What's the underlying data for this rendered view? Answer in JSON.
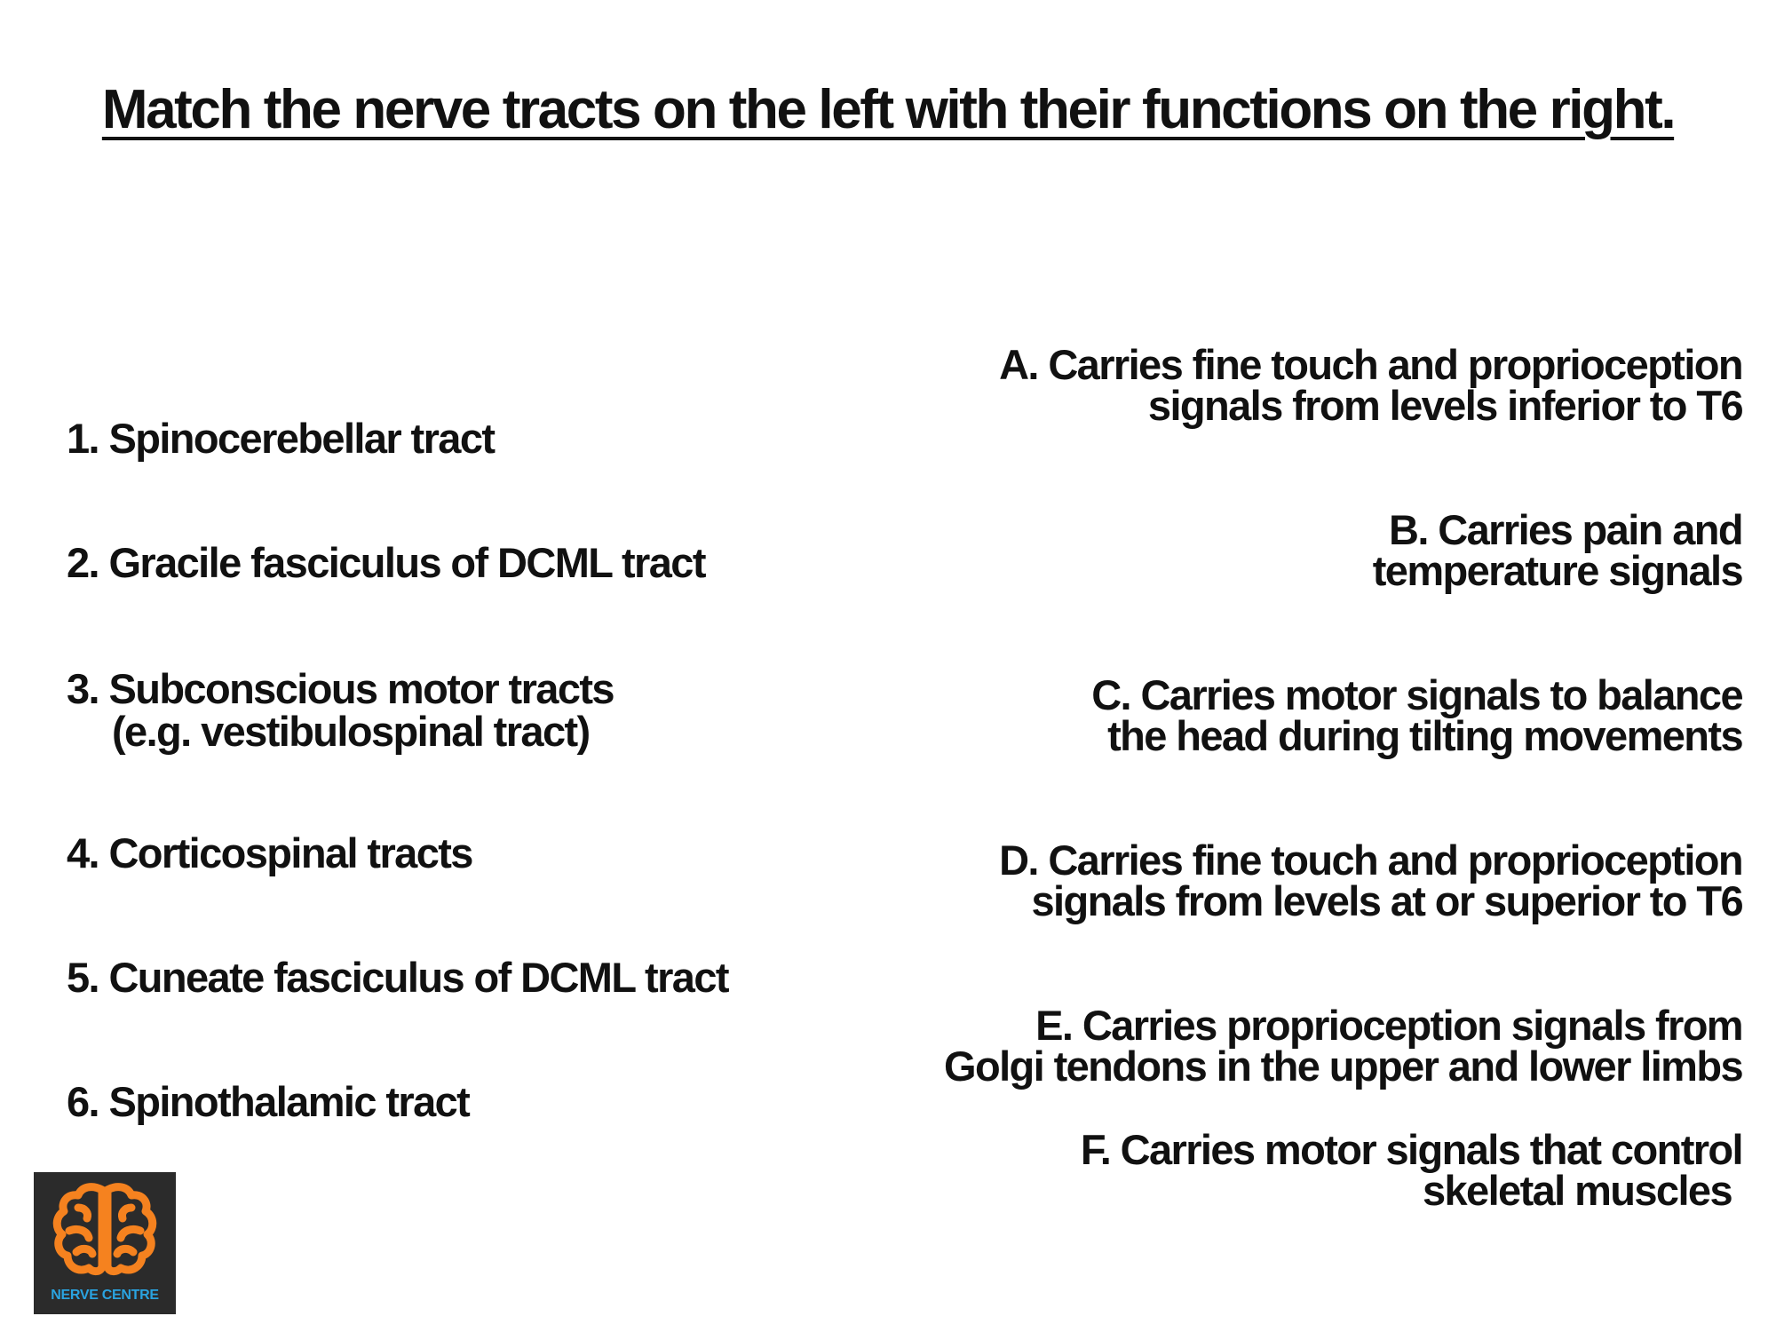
{
  "title": "Match the nerve tracts on the left with their functions on the right.",
  "tracts": [
    {
      "line1": "1. Spinocerebellar tract"
    },
    {
      "line1": "2. Gracile fasciculus of DCML tract"
    },
    {
      "line1": "3. Subconscious motor tracts",
      "line2": "(e.g. vestibulospinal tract)"
    },
    {
      "line1": "4. Corticospinal tracts"
    },
    {
      "line1": "5. Cuneate fasciculus of DCML tract"
    },
    {
      "line1": "6. Spinothalamic tract"
    }
  ],
  "functions": [
    {
      "line1": "A. Carries fine touch and proprioception",
      "line2": "signals from levels inferior to T6"
    },
    {
      "line1": "B. Carries pain and",
      "line2": "temperature signals"
    },
    {
      "line1": "C. Carries motor signals to balance",
      "line2": "the head during tilting movements"
    },
    {
      "line1": "D. Carries fine touch and proprioception",
      "line2": "signals from levels at or superior to T6"
    },
    {
      "line1": "E. Carries proprioception signals from",
      "line2": "Golgi tendons in the upper and lower limbs"
    },
    {
      "line1": "F. Carries motor signals that control",
      "line2": "skeletal muscles"
    }
  ],
  "logo": {
    "text": "NERVE CENTRE",
    "icon": "brain-icon",
    "colors": {
      "background": "#2b2b2b",
      "icon": "#f5821f",
      "text": "#2aa3e0"
    }
  }
}
